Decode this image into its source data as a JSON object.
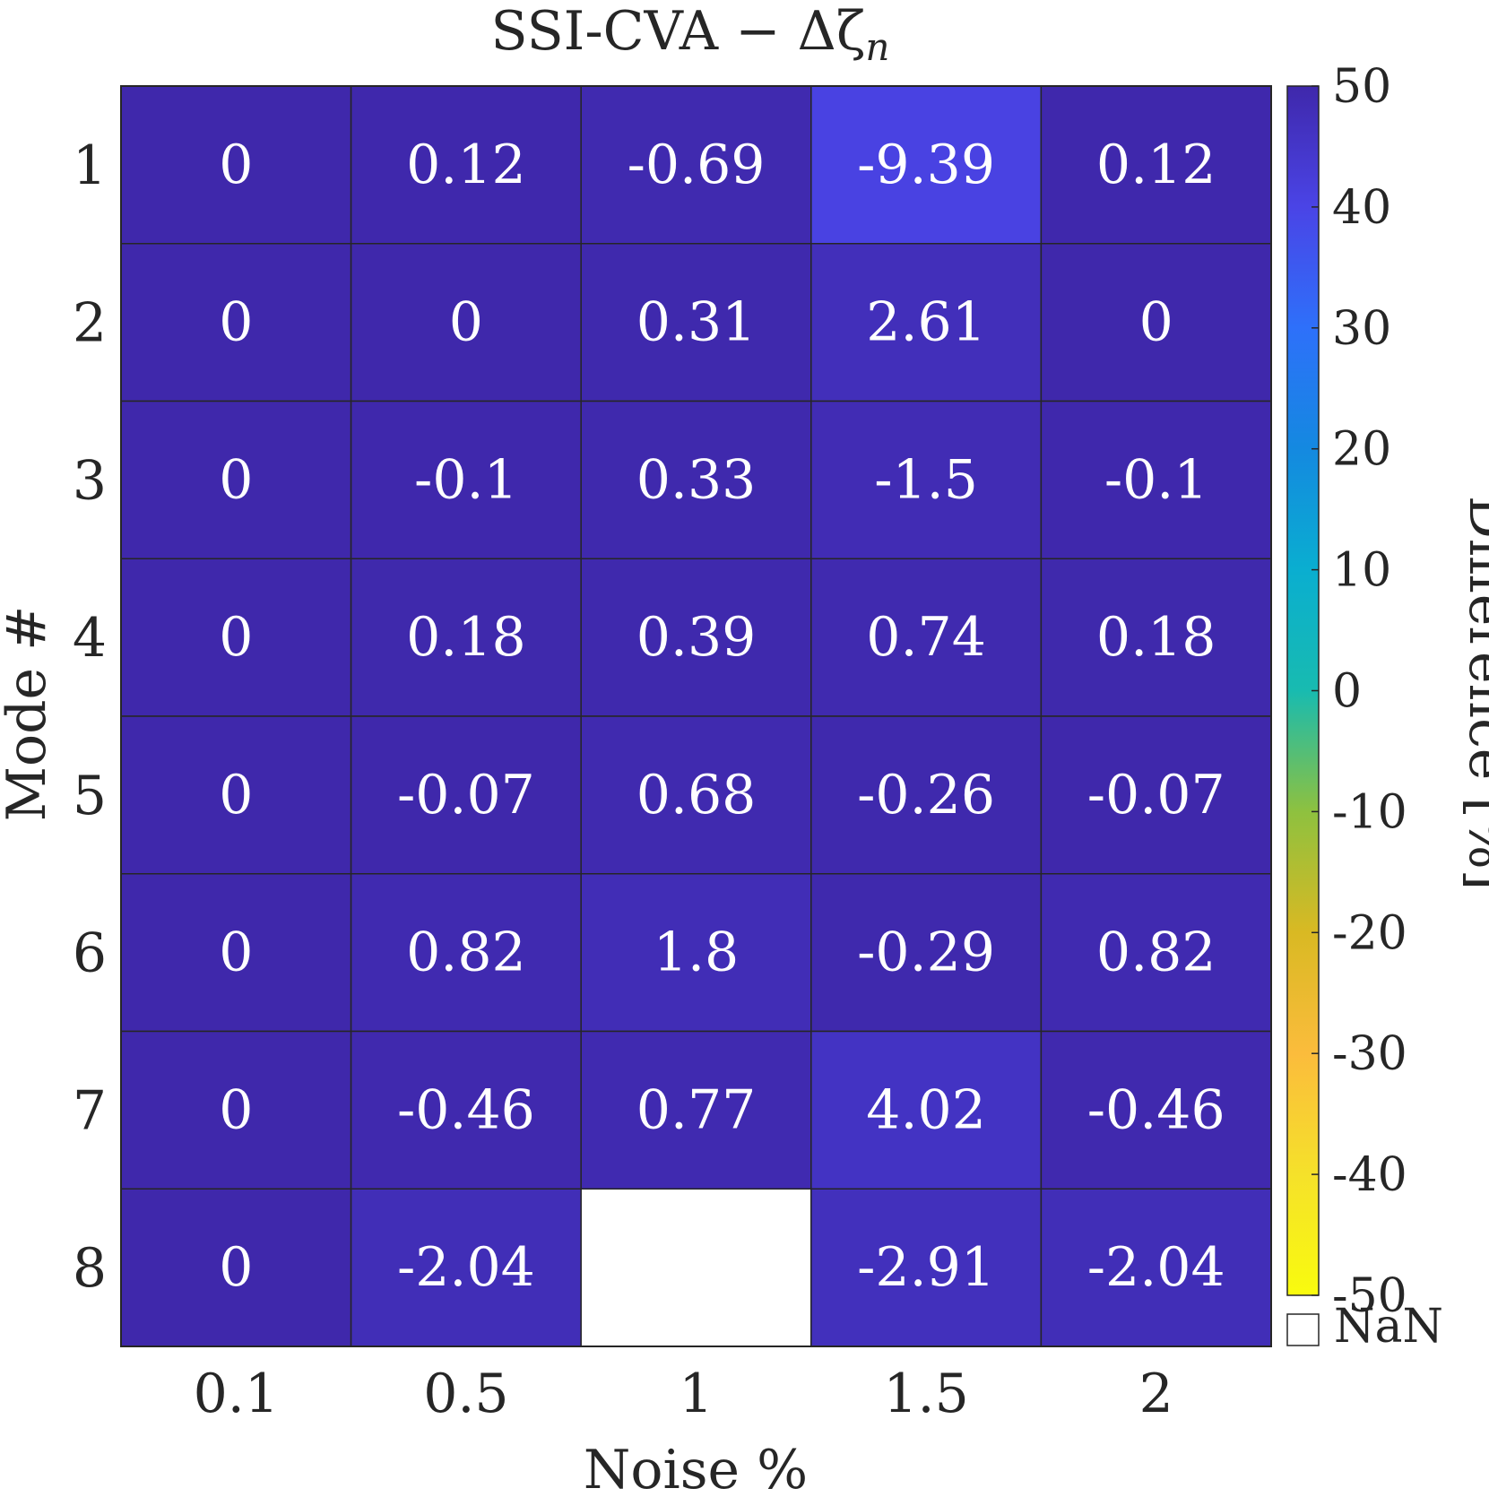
{
  "chart_data": {
    "type": "heatmap",
    "title_main": "SSI-CVA − Δζ",
    "title_sub": "n",
    "xlabel": "Noise %",
    "ylabel": "Mode #",
    "x_categories": [
      "0.1",
      "0.5",
      "1",
      "1.5",
      "2"
    ],
    "y_categories": [
      "1",
      "2",
      "3",
      "4",
      "5",
      "6",
      "7",
      "8"
    ],
    "values": [
      [
        0,
        0.12,
        -0.69,
        -9.39,
        0.12
      ],
      [
        0,
        0,
        0.31,
        2.61,
        0
      ],
      [
        0,
        -0.1,
        0.33,
        -1.5,
        -0.1
      ],
      [
        0,
        0.18,
        0.39,
        0.74,
        0.18
      ],
      [
        0,
        -0.07,
        0.68,
        -0.26,
        -0.07
      ],
      [
        0,
        0.82,
        1.8,
        -0.29,
        0.82
      ],
      [
        0,
        -0.46,
        0.77,
        4.02,
        -0.46
      ],
      [
        0,
        -2.04,
        null,
        -2.91,
        -2.04
      ]
    ],
    "cell_labels": [
      [
        "0",
        "0.12",
        "-0.69",
        "-9.39",
        "0.12"
      ],
      [
        "0",
        "0",
        "0.31",
        "2.61",
        "0"
      ],
      [
        "0",
        "-0.1",
        "0.33",
        "-1.5",
        "-0.1"
      ],
      [
        "0",
        "0.18",
        "0.39",
        "0.74",
        "0.18"
      ],
      [
        "0",
        "-0.07",
        "0.68",
        "-0.26",
        "-0.07"
      ],
      [
        "0",
        "0.82",
        "1.8",
        "-0.29",
        "0.82"
      ],
      [
        "0",
        "-0.46",
        "0.77",
        "4.02",
        "-0.46"
      ],
      [
        "0",
        "-2.04",
        "",
        "-2.91",
        "-2.04"
      ]
    ],
    "colorbar": {
      "label": "Difference [%]",
      "range": [
        -50,
        50
      ],
      "ticks": [
        "50",
        "40",
        "30",
        "20",
        "10",
        "0",
        "-10",
        "-20",
        "-30",
        "-40",
        "-50"
      ],
      "nan_label": "NaN",
      "colormap": "parula"
    },
    "colors": {
      "nan_cell": "#ffffff",
      "cell_text": "#ffffff",
      "grid_line": "#262626",
      "axis_text": "#262626"
    }
  }
}
